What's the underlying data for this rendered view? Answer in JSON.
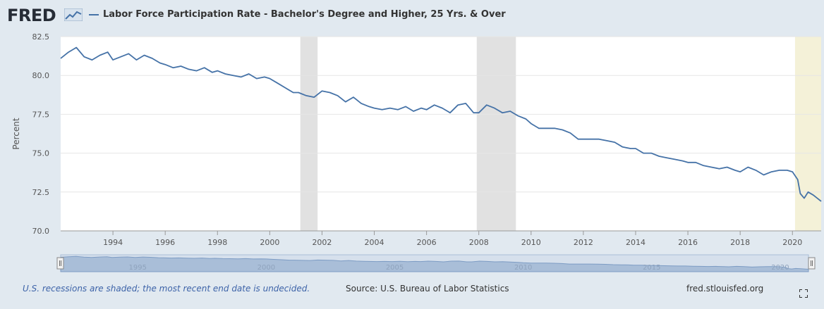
{
  "header": {
    "logo_text": "FRED",
    "title": "Labor Force Participation Rate - Bachelor's Degree and Higher, 25 Yrs. & Over"
  },
  "colors": {
    "series": "#4572a7",
    "recession": "#e1e1e1",
    "undecided": "#f4f1d8",
    "navigator_fill": "#a9bed8"
  },
  "icons": {
    "logo": "trend-chart-icon",
    "expand": "fullscreen-icon",
    "handle": "drag-handle-icon"
  },
  "chart_data": {
    "type": "line",
    "ylabel": "Percent",
    "xlabel": "",
    "ylim": [
      70.0,
      82.5
    ],
    "yticks": [
      70.0,
      72.5,
      75.0,
      77.5,
      80.0,
      82.5
    ],
    "ytick_labels": [
      "70.0",
      "72.5",
      "75.0",
      "77.5",
      "80.0",
      "82.5"
    ],
    "xlim": [
      1992.0,
      2021.1
    ],
    "xticks": [
      1994,
      1996,
      1998,
      2000,
      2002,
      2004,
      2006,
      2008,
      2010,
      2012,
      2014,
      2016,
      2018,
      2020
    ],
    "xtick_labels": [
      "1994",
      "1996",
      "1998",
      "2000",
      "2002",
      "2004",
      "2006",
      "2008",
      "2010",
      "2012",
      "2014",
      "2016",
      "2018",
      "2020"
    ],
    "grid": true,
    "recessions": [
      [
        2001.17,
        2001.83
      ],
      [
        2007.92,
        2009.42
      ]
    ],
    "undecided_recession": [
      2020.1,
      2021.1
    ],
    "series": [
      {
        "x": [
          1992.0,
          1992.3,
          1992.6,
          1992.9,
          1993.2,
          1993.5,
          1993.8,
          1994.0,
          1994.3,
          1994.6,
          1994.9,
          1995.2,
          1995.5,
          1995.8,
          1996.0,
          1996.3,
          1996.6,
          1996.9,
          1997.2,
          1997.5,
          1997.8,
          1998.0,
          1998.3,
          1998.6,
          1998.9,
          1999.2,
          1999.5,
          1999.8,
          2000.0,
          2000.3,
          2000.6,
          2000.9,
          2001.1,
          2001.4,
          2001.7,
          2002.0,
          2002.3,
          2002.6,
          2002.9,
          2003.2,
          2003.5,
          2003.8,
          2004.0,
          2004.3,
          2004.6,
          2004.9,
          2005.2,
          2005.5,
          2005.8,
          2006.0,
          2006.3,
          2006.6,
          2006.9,
          2007.2,
          2007.5,
          2007.8,
          2008.0,
          2008.3,
          2008.6,
          2008.9,
          2009.2,
          2009.5,
          2009.8,
          2010.0,
          2010.3,
          2010.6,
          2010.9,
          2011.2,
          2011.5,
          2011.8,
          2012.0,
          2012.3,
          2012.6,
          2012.9,
          2013.2,
          2013.5,
          2013.8,
          2014.0,
          2014.3,
          2014.6,
          2014.9,
          2015.2,
          2015.5,
          2015.8,
          2016.0,
          2016.3,
          2016.6,
          2016.9,
          2017.2,
          2017.5,
          2017.8,
          2018.0,
          2018.3,
          2018.6,
          2018.9,
          2019.2,
          2019.5,
          2019.8,
          2020.0,
          2020.2,
          2020.3,
          2020.45,
          2020.6,
          2020.8,
          2020.95,
          2021.1
        ],
        "y": [
          81.1,
          81.5,
          81.8,
          81.2,
          81.0,
          81.3,
          81.5,
          81.0,
          81.2,
          81.4,
          81.0,
          81.3,
          81.1,
          80.8,
          80.7,
          80.5,
          80.6,
          80.4,
          80.3,
          80.5,
          80.2,
          80.3,
          80.1,
          80.0,
          79.9,
          80.1,
          79.8,
          79.9,
          79.8,
          79.5,
          79.2,
          78.9,
          78.9,
          78.7,
          78.6,
          79.0,
          78.9,
          78.7,
          78.3,
          78.6,
          78.2,
          78.0,
          77.9,
          77.8,
          77.9,
          77.8,
          78.0,
          77.7,
          77.9,
          77.8,
          78.1,
          77.9,
          77.6,
          78.1,
          78.2,
          77.6,
          77.6,
          78.1,
          77.9,
          77.6,
          77.7,
          77.4,
          77.2,
          76.9,
          76.6,
          76.6,
          76.6,
          76.5,
          76.3,
          75.9,
          75.9,
          75.9,
          75.9,
          75.8,
          75.7,
          75.4,
          75.3,
          75.3,
          75.0,
          75.0,
          74.8,
          74.7,
          74.6,
          74.5,
          74.4,
          74.4,
          74.2,
          74.1,
          74.0,
          74.1,
          73.9,
          73.8,
          74.1,
          73.9,
          73.6,
          73.8,
          73.9,
          73.9,
          73.8,
          73.3,
          72.4,
          72.1,
          72.5,
          72.3,
          72.1,
          71.9
        ]
      }
    ],
    "navigator_labels": [
      "1995",
      "2000",
      "2005",
      "2010",
      "2015",
      "2020"
    ]
  },
  "footer": {
    "note": "U.S. recessions are shaded; the most recent end date is undecided.",
    "source": "Source: U.S. Bureau of Labor Statistics",
    "link": "fred.stlouisfed.org"
  }
}
